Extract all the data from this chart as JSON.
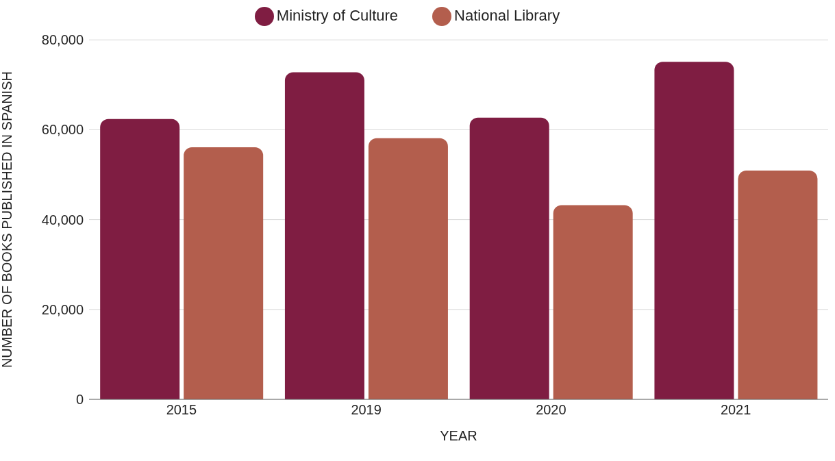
{
  "chart_data": {
    "type": "bar",
    "xlabel": "YEAR",
    "ylabel": "NUMBER OF BOOKS PUBLISHED IN SPANISH",
    "categories": [
      "2015",
      "2019",
      "2020",
      "2021"
    ],
    "series": [
      {
        "name": "Ministry of Culture",
        "color": "#7f1d42",
        "values": [
          62400,
          72800,
          62700,
          75100
        ]
      },
      {
        "name": "National Library",
        "color": "#b35e4d",
        "values": [
          56100,
          58100,
          43200,
          50900
        ]
      }
    ],
    "ylim": [
      0,
      80000
    ],
    "yticks": [
      0,
      {
        "value": 20000,
        "label": "20,000"
      },
      {
        "value": 40000,
        "label": "40,000"
      },
      {
        "value": 60000,
        "label": "60,000"
      },
      {
        "value": 80000,
        "label": "80,000"
      }
    ],
    "grid": "y",
    "legend": "top"
  }
}
